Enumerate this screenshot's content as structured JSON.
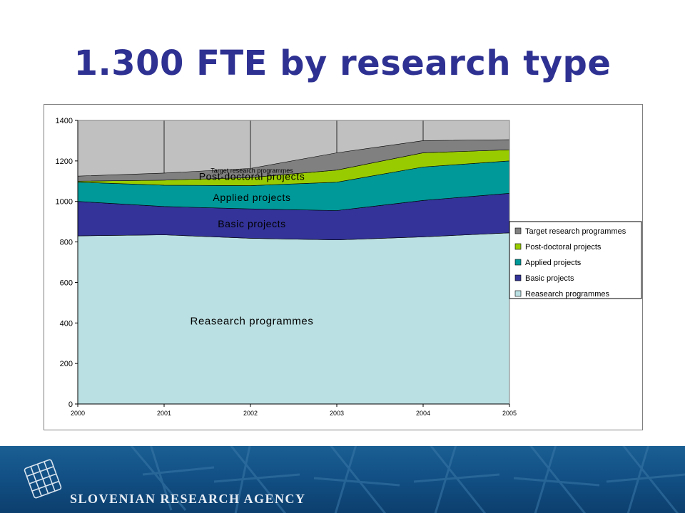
{
  "slide": {
    "title_bold": "1.300 FTE",
    "title_rest": " by research type"
  },
  "footer": {
    "agency_name": "SLOVENIAN RESEARCH AGENCY",
    "background_color": "#125085"
  },
  "chart_data": {
    "type": "area",
    "stacked": true,
    "title": "",
    "xlabel": "",
    "ylabel": "",
    "x": [
      "2000",
      "2001",
      "2002",
      "2003",
      "2004",
      "2005"
    ],
    "ylim": [
      0,
      1400
    ],
    "yticks": [
      0,
      200,
      400,
      600,
      800,
      1000,
      1200,
      1400
    ],
    "grid": "vertical lines at x categories",
    "plot_background": "#c0c0c0",
    "legend_position": "right",
    "series": [
      {
        "name": "Reasearch programmes",
        "values": [
          830,
          835,
          818,
          810,
          825,
          845
        ],
        "color": "#bbe0e3",
        "area_label": "Reasearch programmes"
      },
      {
        "name": "Basic projects",
        "values": [
          170,
          140,
          145,
          145,
          180,
          195
        ],
        "color": "#333399",
        "area_label": "Basic projects"
      },
      {
        "name": "Applied projects",
        "values": [
          95,
          105,
          115,
          140,
          165,
          160
        ],
        "color": "#009999",
        "area_label": "Applied projects"
      },
      {
        "name": "Post-doctoral projects",
        "values": [
          5,
          25,
          40,
          60,
          70,
          55
        ],
        "color": "#99cc00",
        "area_label": "Post-doctoral projects"
      },
      {
        "name": "Target research programmes",
        "values": [
          25,
          35,
          45,
          85,
          60,
          50
        ],
        "color": "#808080",
        "area_label": "Target research programmes"
      }
    ]
  }
}
